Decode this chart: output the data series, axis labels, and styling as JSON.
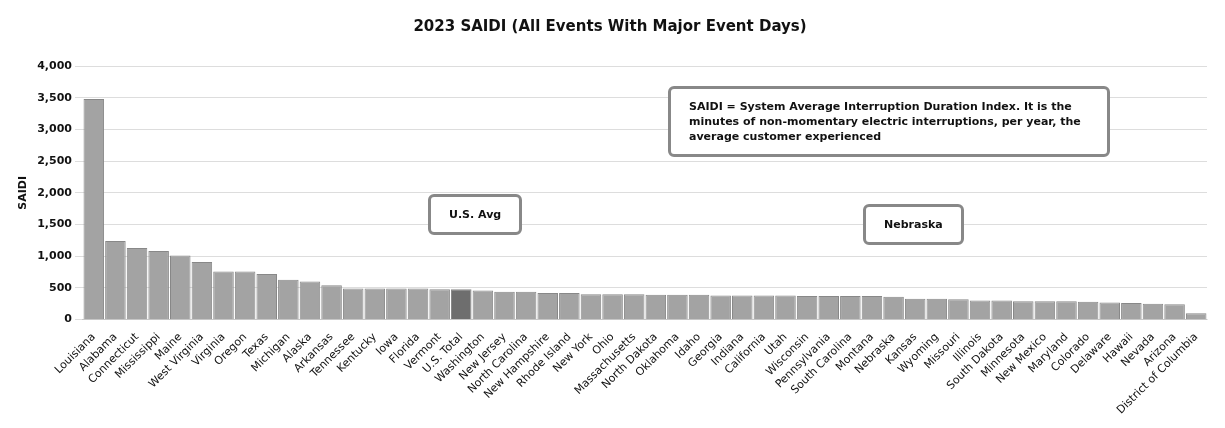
{
  "chart_data": {
    "type": "bar",
    "title": "2023 SAIDI (All Events With Major Event Days)",
    "ylabel": "SAIDI",
    "categories": [
      "Louisiana",
      "Alabama",
      "Connecticut",
      "Mississippi",
      "Maine",
      "West Virginia",
      "Virginia",
      "Oregon",
      "Texas",
      "Michigan",
      "Alaska",
      "Arkansas",
      "Tennessee",
      "Kentucky",
      "Iowa",
      "Florida",
      "Vermont",
      "U.S. Total",
      "Washington",
      "New Jersey",
      "North Carolina",
      "New Hampshire",
      "Rhode Island",
      "New York",
      "Ohio",
      "Massachusetts",
      "North Dakota",
      "Oklahoma",
      "Idaho",
      "Georgia",
      "Indiana",
      "California",
      "Utah",
      "Wisconsin",
      "Pennsylvania",
      "South Carolina",
      "Montana",
      "Nebraska",
      "Kansas",
      "Wyoming",
      "Missouri",
      "Illinois",
      "South Dakota",
      "Minnesota",
      "New Mexico",
      "Maryland",
      "Colorado",
      "Delaware",
      "Hawaii",
      "Nevada",
      "Arizona",
      "District of Columbia"
    ],
    "values": [
      3480,
      1240,
      1130,
      1080,
      1010,
      910,
      760,
      760,
      720,
      630,
      600,
      540,
      490,
      490,
      490,
      490,
      480,
      480,
      460,
      440,
      440,
      420,
      420,
      400,
      400,
      400,
      390,
      390,
      390,
      380,
      380,
      380,
      380,
      370,
      370,
      370,
      370,
      360,
      330,
      330,
      320,
      300,
      300,
      290,
      290,
      290,
      280,
      270,
      260,
      250,
      240,
      100
    ],
    "colors": [
      "#a3a3a3",
      "#a3a3a3",
      "#a3a3a3",
      "#a3a3a3",
      "#a3a3a3",
      "#a3a3a3",
      "#a3a3a3",
      "#a3a3a3",
      "#a3a3a3",
      "#a3a3a3",
      "#a3a3a3",
      "#a3a3a3",
      "#a3a3a3",
      "#a3a3a3",
      "#a3a3a3",
      "#a3a3a3",
      "#a3a3a3",
      "#6e6e6e",
      "#a3a3a3",
      "#a3a3a3",
      "#a3a3a3",
      "#a3a3a3",
      "#a3a3a3",
      "#a3a3a3",
      "#a3a3a3",
      "#a3a3a3",
      "#a3a3a3",
      "#a3a3a3",
      "#a3a3a3",
      "#a3a3a3",
      "#a3a3a3",
      "#a3a3a3",
      "#a3a3a3",
      "#a3a3a3",
      "#a3a3a3",
      "#a3a3a3",
      "#a3a3a3",
      "#a3a3a3",
      "#a3a3a3",
      "#a3a3a3",
      "#a3a3a3",
      "#a3a3a3",
      "#a3a3a3",
      "#a3a3a3",
      "#a3a3a3",
      "#a3a3a3",
      "#a3a3a3",
      "#a3a3a3",
      "#a3a3a3",
      "#a3a3a3",
      "#a3a3a3",
      "#a3a3a3"
    ],
    "ylim": [
      0,
      4000
    ],
    "yticks": [
      {
        "value": 0,
        "label": "0"
      },
      {
        "value": 500,
        "label": "500"
      },
      {
        "value": 1000,
        "label": "1,000"
      },
      {
        "value": 1500,
        "label": "1,500"
      },
      {
        "value": 2000,
        "label": "2,000"
      },
      {
        "value": 2500,
        "label": "2,500"
      },
      {
        "value": 3000,
        "label": "3,000"
      },
      {
        "value": 3500,
        "label": "3,500"
      },
      {
        "value": 4000,
        "label": "4,000"
      }
    ],
    "grid": "y",
    "legend": false,
    "annotations": [
      "SAIDI = System Average Interruption Duration Index. It is the minutes of non-momentary electric interruptions, per year, the average customer experienced",
      "U.S. Avg",
      "Nebraska"
    ]
  }
}
